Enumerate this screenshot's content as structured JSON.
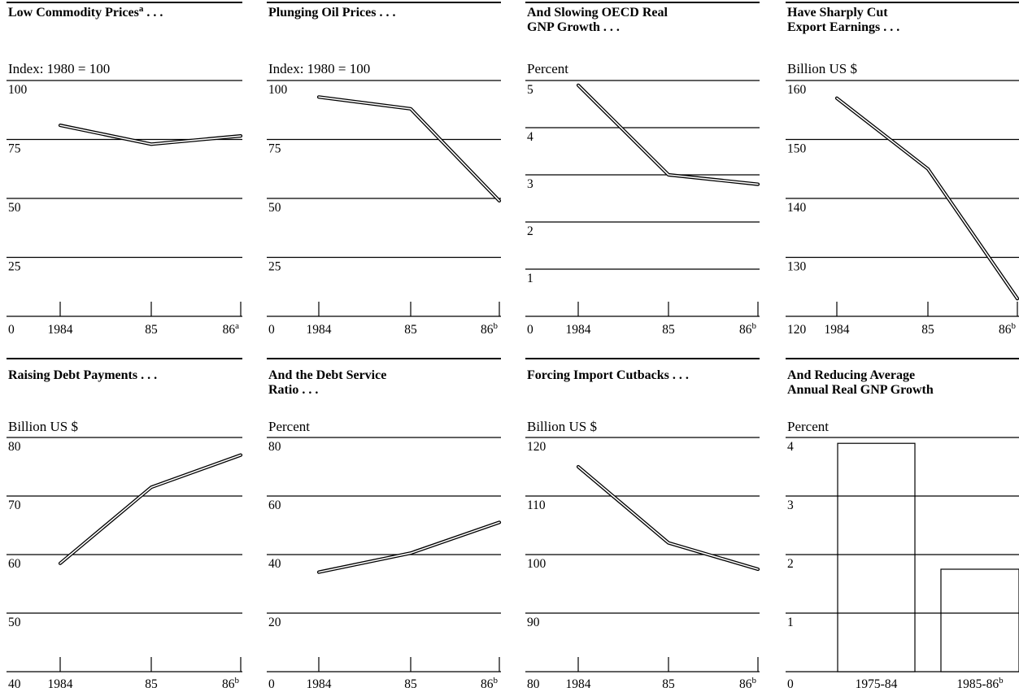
{
  "chart_data": [
    {
      "type": "line",
      "title": [
        "Low Commodity Prices",
        " . . ."
      ],
      "title_sup": "a",
      "ylabel": "Index: 1980 = 100",
      "ylim": [
        0,
        100
      ],
      "yticks": [
        "100",
        "75",
        "50",
        "25"
      ],
      "y_origin_label": "0",
      "categories": [
        "1984",
        "85",
        "86"
      ],
      "category_sup": [
        "",
        "",
        "a"
      ],
      "values": [
        81,
        73,
        76.5
      ]
    },
    {
      "type": "line",
      "title": [
        "Plunging Oil Prices . . ."
      ],
      "title_sup": "",
      "ylabel": "Index: 1980 = 100",
      "ylim": [
        0,
        100
      ],
      "yticks": [
        "100",
        "75",
        "50",
        "25"
      ],
      "y_origin_label": "0",
      "categories": [
        "1984",
        "85",
        "86"
      ],
      "category_sup": [
        "",
        "",
        "b"
      ],
      "values": [
        93,
        88,
        49
      ]
    },
    {
      "type": "line",
      "title": [
        "And Slowing OECD Real",
        "GNP Growth . . ."
      ],
      "title_sup": "",
      "ylabel": "Percent",
      "ylim": [
        0,
        5
      ],
      "yticks": [
        "5",
        "4",
        "3",
        "2",
        "1"
      ],
      "y_origin_label": "0",
      "categories": [
        "1984",
        "85",
        "86"
      ],
      "category_sup": [
        "",
        "",
        "b"
      ],
      "values": [
        4.9,
        3.0,
        2.8
      ]
    },
    {
      "type": "line",
      "title": [
        "Have Sharply Cut",
        "Export Earnings . . ."
      ],
      "title_sup": "",
      "ylabel": "Billion US $",
      "ylim": [
        120,
        160
      ],
      "yticks": [
        "160",
        "150",
        "140",
        "130"
      ],
      "y_origin_label": "120",
      "categories": [
        "1984",
        "85",
        "86"
      ],
      "category_sup": [
        "",
        "",
        "b"
      ],
      "values": [
        157,
        145,
        123
      ]
    },
    {
      "type": "line",
      "title": [
        "Raising Debt Payments . . ."
      ],
      "title_sup": "",
      "ylabel": "Billion US $",
      "ylim": [
        40,
        80
      ],
      "yticks": [
        "80",
        "70",
        "60",
        "50"
      ],
      "y_origin_label": "40",
      "categories": [
        "1984",
        "85",
        "86"
      ],
      "category_sup": [
        "",
        "",
        "b"
      ],
      "values": [
        58.5,
        71.5,
        77
      ]
    },
    {
      "type": "line",
      "title": [
        "And the Debt Service",
        "Ratio . . ."
      ],
      "title_sup": "",
      "ylabel": "Percent",
      "ylim": [
        0,
        80
      ],
      "yticks": [
        "80",
        "60",
        "40",
        "20"
      ],
      "y_origin_label": "0",
      "categories": [
        "1984",
        "85",
        "86"
      ],
      "category_sup": [
        "",
        "",
        "b"
      ],
      "values": [
        34,
        40.5,
        51
      ]
    },
    {
      "type": "line",
      "title": [
        "Forcing Import Cutbacks . . ."
      ],
      "title_sup": "",
      "ylabel": "Billion US $",
      "ylim": [
        80,
        120
      ],
      "yticks": [
        "120",
        "110",
        "100",
        "90"
      ],
      "y_origin_label": "80",
      "categories": [
        "1984",
        "85",
        "86"
      ],
      "category_sup": [
        "",
        "",
        "b"
      ],
      "values": [
        115,
        102,
        97.5
      ]
    },
    {
      "type": "bar",
      "title": [
        "And Reducing Average",
        "Annual Real GNP Growth"
      ],
      "title_sup": "",
      "ylabel": "Percent",
      "ylim": [
        0,
        4
      ],
      "yticks": [
        "4",
        "3",
        "2",
        "1"
      ],
      "y_origin_label": "0",
      "categories": [
        "1975-84",
        "1985-86"
      ],
      "category_sup": [
        "",
        "b"
      ],
      "values": [
        3.9,
        1.75
      ]
    }
  ]
}
